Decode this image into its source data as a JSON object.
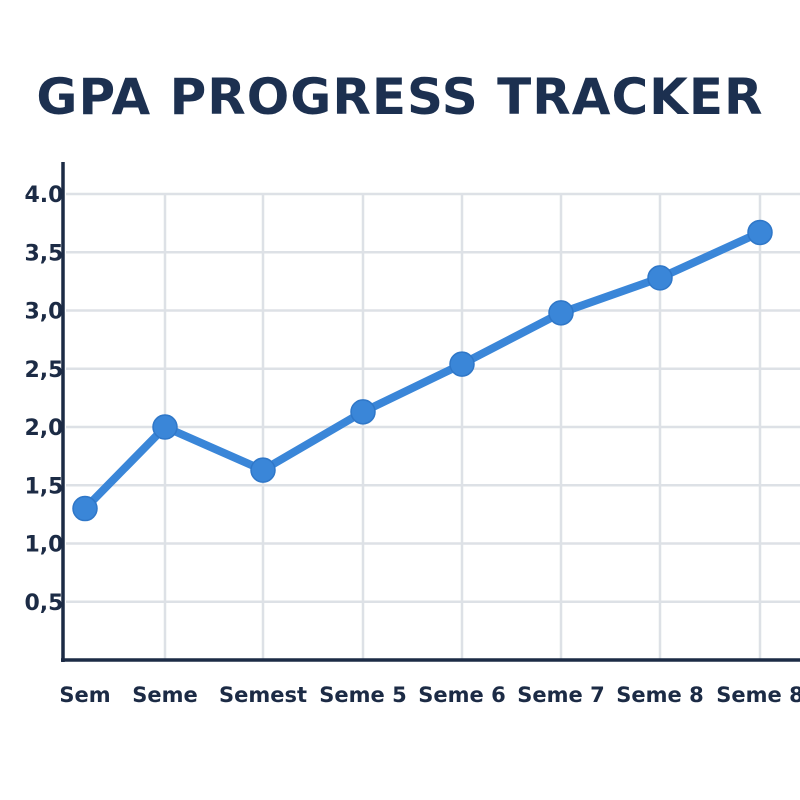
{
  "chart_data": {
    "type": "line",
    "title": "GPA PROGRESS TRACKER",
    "xlabel": "",
    "ylabel": "",
    "categories": [
      "Sem",
      "Seme",
      "Semest",
      "Seme 5",
      "Seme 6",
      "Seme 7",
      "Seme 8",
      "Seme 8"
    ],
    "values": [
      1.3,
      2.0,
      1.63,
      2.13,
      2.54,
      2.98,
      3.28,
      3.67
    ],
    "ylim": [
      0,
      4.0
    ],
    "yticks": [
      "0,5",
      "1,0",
      "1,5",
      "2,0",
      "2,5",
      "3,0",
      "3,5",
      "4.0"
    ],
    "ytick_values": [
      0.5,
      1.0,
      1.5,
      2.0,
      2.5,
      3.0,
      3.5,
      4.0
    ],
    "grid": true,
    "line_color": "#3a86d8",
    "axis_color": "#1c2b45"
  }
}
